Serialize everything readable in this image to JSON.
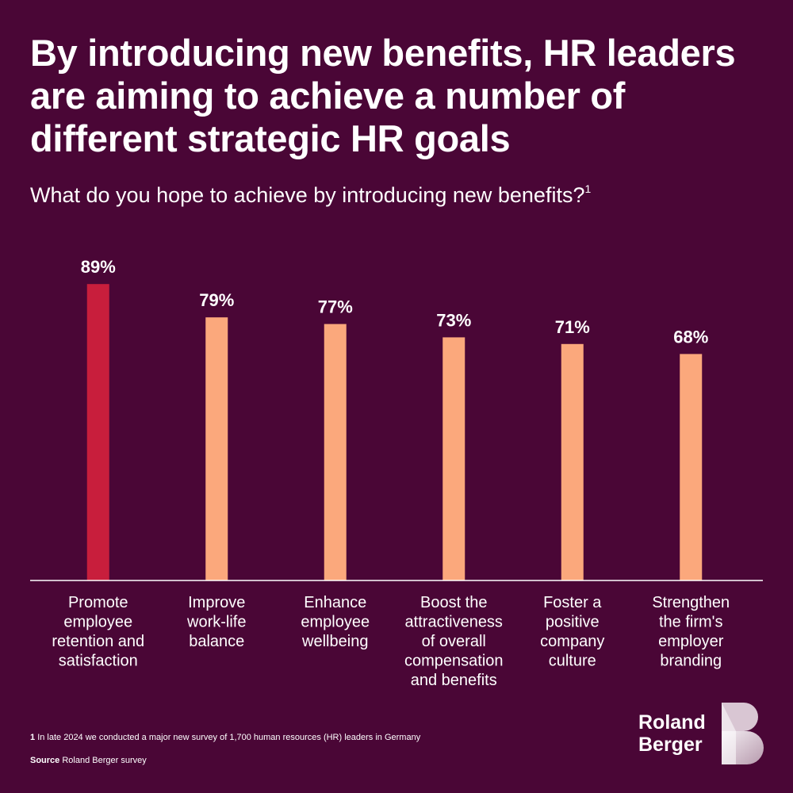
{
  "title": "By introducing new benefits, HR leaders are aiming to achieve a number of different strategic HR goals",
  "subtitle": "What do you hope to achieve by introducing new benefits?",
  "subtitle_ref": "1",
  "chart_data": {
    "type": "bar",
    "categories": [
      [
        "Promote",
        "employee",
        "retention and",
        "satisfaction"
      ],
      [
        "Improve",
        "work-life",
        "balance"
      ],
      [
        "Enhance",
        "employee",
        "wellbeing"
      ],
      [
        "Boost the",
        "attractiveness",
        "of overall",
        "compensation",
        "and benefits"
      ],
      [
        "Foster a",
        "positive",
        "company",
        "culture"
      ],
      [
        "Strengthen",
        "the firm's",
        "employer",
        "branding"
      ]
    ],
    "values": [
      89,
      79,
      77,
      73,
      71,
      68
    ],
    "value_labels": [
      "89%",
      "79%",
      "77%",
      "73%",
      "71%",
      "68%"
    ],
    "ylim": [
      0,
      100
    ],
    "highlight_index": 0,
    "colors": {
      "highlight": "#c81e3c",
      "bar": "#fba87c",
      "axis": "#ffffff",
      "background": "#4a0636"
    }
  },
  "footnote": {
    "number": "1",
    "text": "In late 2024 we conducted a major new survey of 1,700 human resources (HR) leaders in Germany"
  },
  "source": {
    "label": "Source",
    "text": "Roland Berger survey"
  },
  "logo": {
    "line1": "Roland",
    "line2": "Berger",
    "mark_icon": "roland-berger-b-icon"
  }
}
